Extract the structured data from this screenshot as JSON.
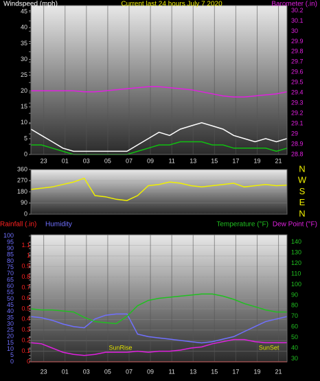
{
  "chart_data": [
    {
      "type": "line",
      "title": "Current last 24 hours July 7 2020",
      "grid": true,
      "x": [
        0,
        1,
        2,
        3,
        4,
        5,
        6,
        7,
        8,
        9,
        10,
        11,
        12,
        13,
        14,
        15,
        16,
        17,
        18,
        19,
        20,
        21,
        22,
        23,
        24
      ],
      "xlim": [
        0,
        24
      ],
      "xticks": [
        {
          "value": 1.2,
          "label": "23"
        },
        {
          "value": 3.2,
          "label": "01"
        },
        {
          "value": 5.2,
          "label": "03"
        },
        {
          "value": 7.2,
          "label": "05"
        },
        {
          "value": 9.2,
          "label": "07"
        },
        {
          "value": 11.2,
          "label": "09"
        },
        {
          "value": 13.2,
          "label": "11"
        },
        {
          "value": 15.2,
          "label": "13"
        },
        {
          "value": 17.2,
          "label": "15"
        },
        {
          "value": 19.2,
          "label": "17"
        },
        {
          "value": 21.2,
          "label": "19"
        },
        {
          "value": 23.2,
          "label": "21"
        }
      ],
      "ylim": [
        0,
        47
      ],
      "yticks": [
        0,
        5,
        10,
        15,
        20,
        25,
        30,
        35,
        40,
        45
      ],
      "y2lim": [
        28.8,
        30.25
      ],
      "y2ticks": [
        28.8,
        28.9,
        {
          "value": 29,
          "label": "29"
        },
        29.1,
        29.2,
        29.3,
        29.4,
        29.5,
        29.6,
        29.7,
        29.8,
        29.9,
        {
          "value": 30,
          "label": "30"
        },
        30.1,
        30.2
      ],
      "series": [
        {
          "name": "Windspeed (mph)",
          "color": "#ffffff",
          "values": [
            8,
            6,
            4,
            2,
            1,
            1,
            1,
            1,
            1,
            1,
            3,
            5,
            7,
            6,
            8,
            9,
            10,
            9,
            8,
            6,
            5,
            4,
            5,
            4,
            5
          ]
        },
        {
          "color": "#10c010",
          "values": [
            3,
            3,
            2,
            1,
            0,
            0,
            0,
            0,
            0,
            0,
            1,
            2,
            3,
            3,
            4,
            4,
            4,
            3,
            3,
            2,
            2,
            2,
            2,
            1,
            2
          ]
        },
        {
          "name": "Barometer (.in)",
          "color": "#e020e0",
          "axis": "y2",
          "values": [
            29.42,
            29.42,
            29.42,
            29.42,
            29.42,
            29.41,
            29.41,
            29.42,
            29.43,
            29.44,
            29.45,
            29.46,
            29.46,
            29.45,
            29.44,
            29.43,
            29.41,
            29.39,
            29.37,
            29.36,
            29.36,
            29.37,
            29.38,
            29.39,
            29.41
          ]
        }
      ]
    },
    {
      "type": "line",
      "grid": true,
      "x": [
        0,
        1,
        2,
        3,
        4,
        5,
        6,
        7,
        8,
        9,
        10,
        11,
        12,
        13,
        14,
        15,
        16,
        17,
        18,
        19,
        20,
        21,
        22,
        23,
        24
      ],
      "xlim": [
        0,
        24
      ],
      "ylim": [
        0,
        360
      ],
      "yticks": [
        0,
        90,
        180,
        270,
        360
      ],
      "y2lim": [
        0,
        360
      ],
      "y2ticks": [
        {
          "value": 360,
          "label": "N"
        },
        {
          "value": 270,
          "label": "W"
        },
        {
          "value": 180,
          "label": "S"
        },
        {
          "value": 90,
          "label": "E"
        },
        {
          "value": 0,
          "label": "N"
        }
      ],
      "series": [
        {
          "color": "#f0f000",
          "values": [
            200,
            210,
            220,
            240,
            260,
            290,
            150,
            140,
            120,
            110,
            150,
            230,
            240,
            260,
            250,
            230,
            220,
            230,
            240,
            250,
            220,
            230,
            240,
            230,
            235
          ]
        }
      ]
    },
    {
      "type": "line",
      "grid": true,
      "x": [
        0,
        1,
        2,
        3,
        4,
        5,
        6,
        7,
        8,
        9,
        10,
        11,
        12,
        13,
        14,
        15,
        16,
        17,
        18,
        19,
        20,
        21,
        22,
        23,
        24
      ],
      "xlim": [
        0,
        24
      ],
      "xticks": [
        {
          "value": 1.2,
          "label": "23"
        },
        {
          "value": 3.2,
          "label": "01"
        },
        {
          "value": 5.2,
          "label": "03"
        },
        {
          "value": 7.2,
          "label": "05"
        },
        {
          "value": 9.2,
          "label": "07"
        },
        {
          "value": 11.2,
          "label": "09"
        },
        {
          "value": 13.2,
          "label": "11"
        },
        {
          "value": 15.2,
          "label": "13"
        },
        {
          "value": 17.2,
          "label": "15"
        },
        {
          "value": 19.2,
          "label": "17"
        },
        {
          "value": 21.2,
          "label": "19"
        },
        {
          "value": 23.2,
          "label": "21"
        }
      ],
      "ylim": [
        0,
        1.2
      ],
      "yticks": [
        0,
        0.1,
        0.2,
        0.3,
        0.4,
        0.5,
        0.6,
        0.7,
        0.8,
        0.9,
        {
          "value": 1,
          "label": "1"
        },
        1.1
      ],
      "y2lim": [
        27,
        147
      ],
      "y2ticks": [
        30,
        40,
        50,
        60,
        70,
        80,
        90,
        100,
        110,
        120,
        130,
        140
      ],
      "y3lim": [
        0,
        101
      ],
      "y3ticks": [
        0,
        5,
        10,
        15,
        20,
        25,
        30,
        35,
        40,
        45,
        50,
        55,
        60,
        65,
        70,
        75,
        80,
        85,
        90,
        95,
        100
      ],
      "annotations": [
        {
          "text": "SunRise",
          "x": 8.4
        },
        {
          "text": "SunSet",
          "x": 22.3
        }
      ],
      "series": [
        {
          "name": "Rainfall (.in)",
          "color": "#ff2020",
          "values": [
            0,
            0,
            0,
            0,
            0,
            0,
            0,
            0,
            0,
            0,
            0,
            0,
            0,
            0,
            0,
            0,
            0,
            0,
            0,
            0,
            0,
            0,
            0,
            0,
            0
          ]
        },
        {
          "name": "Humidity",
          "color": "#7070ff",
          "axis": "y3",
          "values": [
            36,
            35,
            33,
            30,
            28,
            27,
            34,
            37,
            38,
            38,
            22,
            20,
            19,
            18,
            17,
            16,
            15,
            16,
            18,
            20,
            24,
            28,
            32,
            34,
            36
          ]
        },
        {
          "name": "Temperature (°F)",
          "color": "#20c020",
          "axis": "y2",
          "values": [
            77,
            76,
            76,
            75,
            74,
            69,
            65,
            64,
            63,
            70,
            80,
            85,
            87,
            88,
            89,
            90,
            91,
            91,
            89,
            86,
            82,
            79,
            76,
            74,
            74
          ]
        },
        {
          "name": "Dew Point (°F)",
          "color": "#e020e0",
          "axis": "y2",
          "values": [
            45,
            44,
            40,
            36,
            34,
            33,
            34,
            36,
            36,
            36,
            37,
            36,
            37,
            37,
            38,
            40,
            41,
            44,
            46,
            48,
            48,
            46,
            45,
            45,
            45
          ]
        }
      ]
    }
  ]
}
